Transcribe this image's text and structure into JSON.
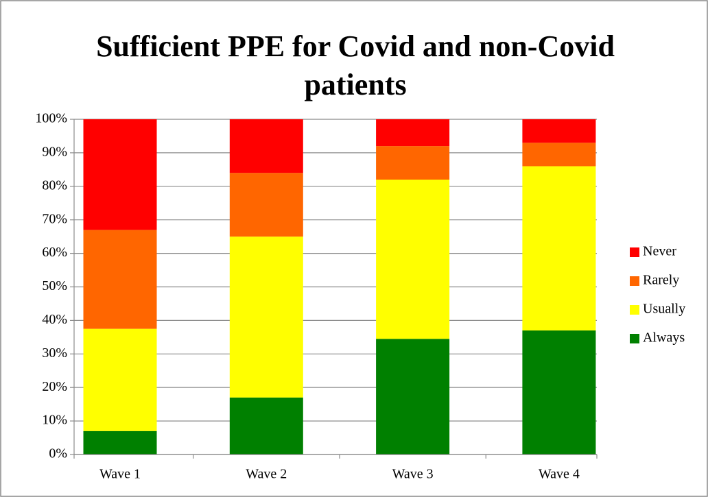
{
  "chart_data": {
    "type": "stacked_bar",
    "title": "Sufficient PPE for Covid and non-Covid patients",
    "categories": [
      "Wave 1",
      "Wave 2",
      "Wave 3",
      "Wave 4"
    ],
    "series": [
      {
        "name": "Always",
        "color": "#008000",
        "values": [
          7,
          17,
          34.5,
          37
        ]
      },
      {
        "name": "Usually",
        "color": "#ffff00",
        "values": [
          30.5,
          48,
          47.5,
          49
        ]
      },
      {
        "name": "Rarely",
        "color": "#ff6600",
        "values": [
          29.5,
          19,
          10,
          7
        ]
      },
      {
        "name": "Never",
        "color": "#ff0000",
        "values": [
          33,
          16,
          8,
          7
        ]
      }
    ],
    "ylim": [
      0,
      100
    ],
    "yticks": [
      {
        "value": 0,
        "label": "0%"
      },
      {
        "value": 10,
        "label": "10%"
      },
      {
        "value": 20,
        "label": "20%"
      },
      {
        "value": 30,
        "label": "30%"
      },
      {
        "value": 40,
        "label": "40%"
      },
      {
        "value": 50,
        "label": "50%"
      },
      {
        "value": 60,
        "label": "60%"
      },
      {
        "value": 70,
        "label": "70%"
      },
      {
        "value": 80,
        "label": "80%"
      },
      {
        "value": 90,
        "label": "90%"
      },
      {
        "value": 100,
        "label": "100%"
      }
    ],
    "grid": true,
    "legend": "right"
  }
}
